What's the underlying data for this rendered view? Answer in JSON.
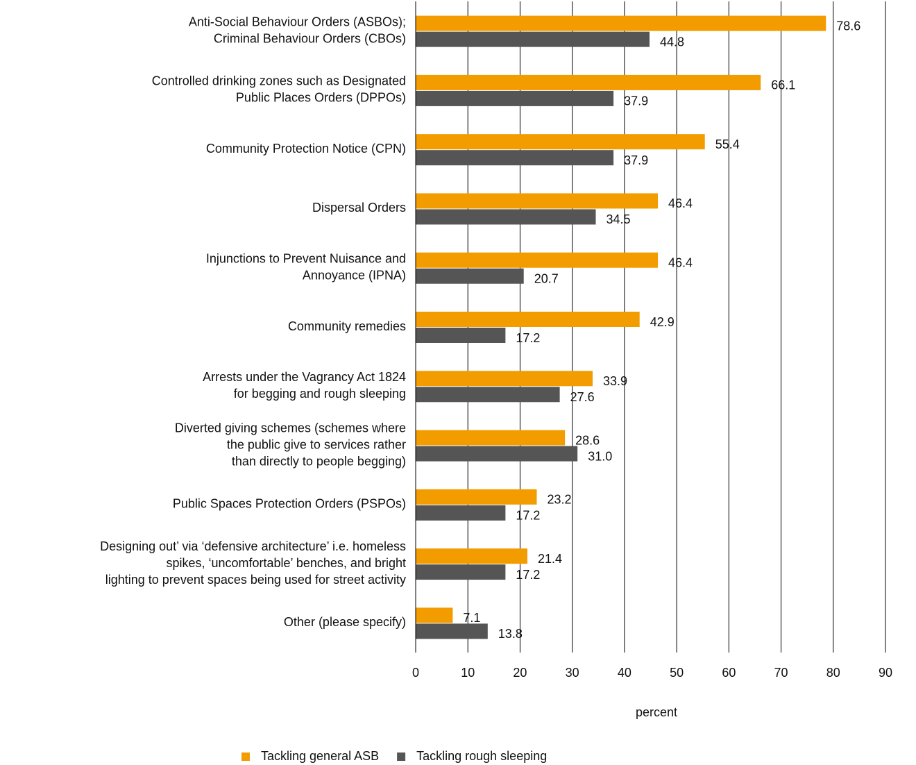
{
  "chart_data": {
    "type": "hbar",
    "categories": [
      [
        "Anti-Social Behaviour Orders (ASBOs);",
        "Criminal Behaviour Orders (CBOs)"
      ],
      [
        "Controlled drinking zones such as Designated",
        "Public Places Orders (DPPOs)"
      ],
      [
        "Community Protection Notice (CPN)"
      ],
      [
        "Dispersal Orders"
      ],
      [
        "Injunctions to Prevent Nuisance and",
        "Annoyance (IPNA)"
      ],
      [
        "Community remedies"
      ],
      [
        "Arrests under the Vagrancy Act 1824",
        "for begging and rough sleeping"
      ],
      [
        "Diverted giving schemes (schemes where",
        "the public give to services rather",
        "than directly to people begging)"
      ],
      [
        "Public Spaces Protection Orders (PSPOs)"
      ],
      [
        "Designing out’ via ‘defensive architecture’ i.e. homeless",
        "spikes, ‘uncomfortable’ benches, and bright",
        "lighting to prevent spaces being used for street activity"
      ],
      [
        "Other (please specify)"
      ]
    ],
    "series": [
      {
        "name": "Tackling general ASB",
        "color": "#f39c00",
        "values": [
          78.6,
          66.1,
          55.4,
          46.4,
          46.4,
          42.9,
          33.9,
          28.6,
          23.2,
          21.4,
          7.1
        ]
      },
      {
        "name": "Tackling rough sleeping",
        "color": "#555555",
        "values": [
          44.8,
          37.9,
          37.9,
          34.5,
          20.7,
          17.2,
          27.6,
          31.0,
          17.2,
          17.2,
          13.8
        ],
        "value_labels": [
          "44.8",
          "37.9",
          "37.9",
          "34.5",
          "20.7",
          "17.2",
          "27.6",
          "31.0",
          "17.2",
          "17.2",
          "13.8"
        ]
      }
    ],
    "xlabel": "percent",
    "xlim": [
      0,
      90
    ],
    "xticks": [
      0,
      10,
      20,
      30,
      40,
      50,
      60,
      70,
      80,
      90
    ],
    "grid": true
  }
}
